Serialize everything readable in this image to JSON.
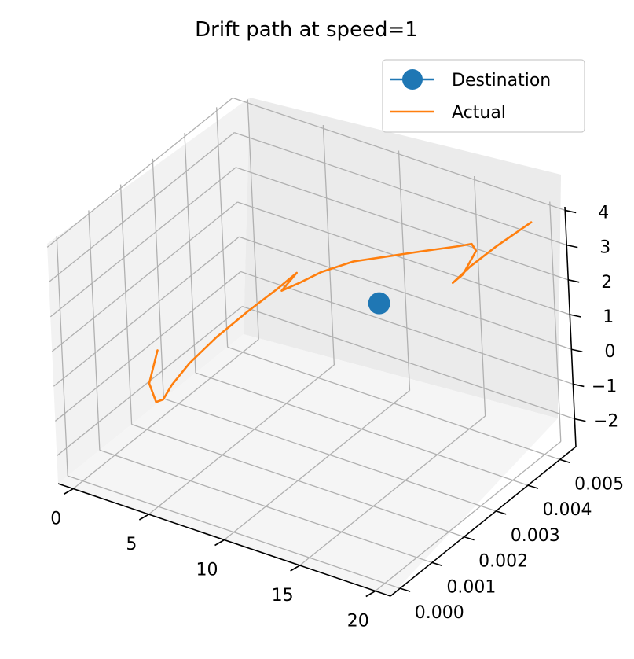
{
  "chart_data": {
    "type": "line3d",
    "title": "Drift path at speed=1",
    "x_ticks": [
      "0",
      "5",
      "10",
      "15",
      "20"
    ],
    "y_ticks": [
      "0.000",
      "0.001",
      "0.002",
      "0.003",
      "0.004",
      "0.005"
    ],
    "z_ticks": [
      "−2",
      "−1",
      "0",
      "1",
      "2",
      "3",
      "4"
    ],
    "xlim": [
      -1.0,
      21.0
    ],
    "ylim": [
      -0.0003,
      0.0055
    ],
    "zlim": [
      -2.8,
      4.1
    ],
    "legend": {
      "placement": "top-right"
    },
    "grid": true,
    "series": [
      {
        "name": "Destination",
        "style": "marker",
        "color": "#1f77b4",
        "points": [
          [
            10.0,
            0.0047,
            0.3
          ]
        ]
      },
      {
        "name": "Actual",
        "style": "line",
        "color": "#ff7f0e",
        "points": [
          [
            0.3,
            0.0023,
            -0.7
          ],
          [
            1.2,
            0.0016,
            -1.0
          ],
          [
            2.5,
            0.0012,
            -1.05
          ],
          [
            3.2,
            0.0011,
            -0.8
          ],
          [
            3.6,
            0.0012,
            -0.4
          ],
          [
            4.2,
            0.0015,
            0.1
          ],
          [
            5.0,
            0.002,
            0.6
          ],
          [
            5.8,
            0.0026,
            1.0
          ],
          [
            6.5,
            0.0032,
            1.3
          ],
          [
            6.9,
            0.0036,
            1.5
          ],
          [
            7.0,
            0.0036,
            1.55
          ],
          [
            6.6,
            0.0033,
            1.2
          ],
          [
            7.2,
            0.0036,
            1.3
          ],
          [
            8.0,
            0.0039,
            1.5
          ],
          [
            9.5,
            0.0042,
            1.8
          ],
          [
            11.5,
            0.0044,
            2.1
          ],
          [
            13.5,
            0.0046,
            2.4
          ],
          [
            15.5,
            0.0047,
            2.75
          ],
          [
            16.4,
            0.0047,
            2.95
          ],
          [
            16.9,
            0.0046,
            2.9
          ],
          [
            16.4,
            0.0044,
            2.3
          ],
          [
            15.9,
            0.0043,
            2.05
          ],
          [
            16.7,
            0.0045,
            2.5
          ],
          [
            18.0,
            0.0047,
            3.1
          ],
          [
            19.2,
            0.0049,
            3.6
          ],
          [
            19.8,
            0.005,
            3.85
          ]
        ]
      }
    ]
  }
}
